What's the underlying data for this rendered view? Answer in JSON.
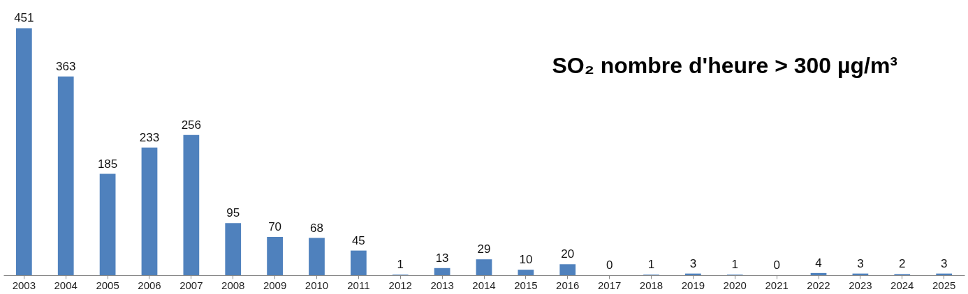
{
  "chart_data": {
    "type": "bar",
    "title": "SO₂ nombre d'heure > 300 µg/m³",
    "categories": [
      "2003",
      "2004",
      "2005",
      "2006",
      "2007",
      "2008",
      "2009",
      "2010",
      "2011",
      "2012",
      "2013",
      "2014",
      "2015",
      "2016",
      "2017",
      "2018",
      "2019",
      "2020",
      "2021",
      "2022",
      "2023",
      "2024",
      "2025"
    ],
    "values": [
      451,
      363,
      185,
      233,
      256,
      95,
      70,
      68,
      45,
      1,
      13,
      29,
      10,
      20,
      0,
      1,
      3,
      1,
      0,
      4,
      3,
      2,
      3
    ],
    "color": "#4f81bd",
    "data_labels": true,
    "grid": false
  }
}
